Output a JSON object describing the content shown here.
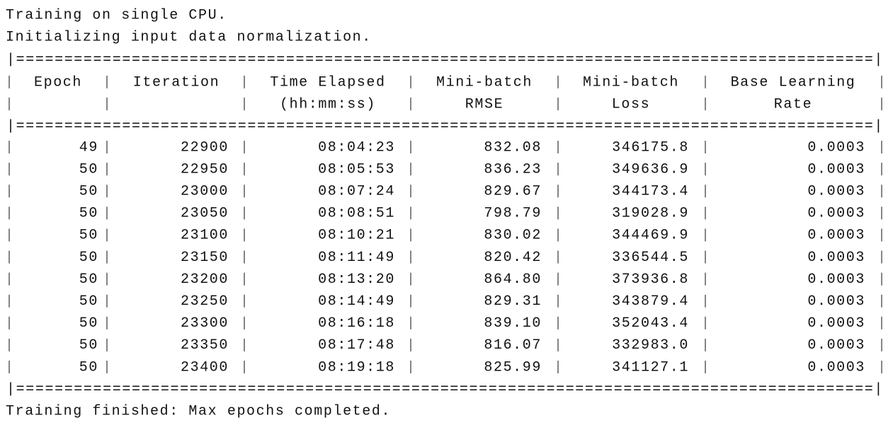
{
  "lines_before": [
    "Training on single CPU.",
    "Initializing input data normalization."
  ],
  "separator": "|=========================================================================================|",
  "table": {
    "header": [
      [
        "Epoch",
        ""
      ],
      [
        "Iteration",
        ""
      ],
      [
        "Time Elapsed",
        "(hh:mm:ss)"
      ],
      [
        "Mini-batch",
        "RMSE"
      ],
      [
        "Mini-batch",
        "Loss"
      ],
      [
        "Base Learning",
        "Rate"
      ]
    ],
    "rows": [
      [
        "49",
        "22900",
        "08:04:23",
        "832.08",
        "346175.8",
        "0.0003"
      ],
      [
        "50",
        "22950",
        "08:05:53",
        "836.23",
        "349636.9",
        "0.0003"
      ],
      [
        "50",
        "23000",
        "08:07:24",
        "829.67",
        "344173.4",
        "0.0003"
      ],
      [
        "50",
        "23050",
        "08:08:51",
        "798.79",
        "319028.9",
        "0.0003"
      ],
      [
        "50",
        "23100",
        "08:10:21",
        "830.02",
        "344469.9",
        "0.0003"
      ],
      [
        "50",
        "23150",
        "08:11:49",
        "820.42",
        "336544.5",
        "0.0003"
      ],
      [
        "50",
        "23200",
        "08:13:20",
        "864.80",
        "373936.8",
        "0.0003"
      ],
      [
        "50",
        "23250",
        "08:14:49",
        "829.31",
        "343879.4",
        "0.0003"
      ],
      [
        "50",
        "23300",
        "08:16:18",
        "839.10",
        "352043.4",
        "0.0003"
      ],
      [
        "50",
        "23350",
        "08:17:48",
        "816.07",
        "332983.0",
        "0.0003"
      ],
      [
        "50",
        "23400",
        "08:19:18",
        "825.99",
        "341127.1",
        "0.0003"
      ]
    ]
  },
  "lines_after": [
    "Training finished: Max epochs completed."
  ]
}
